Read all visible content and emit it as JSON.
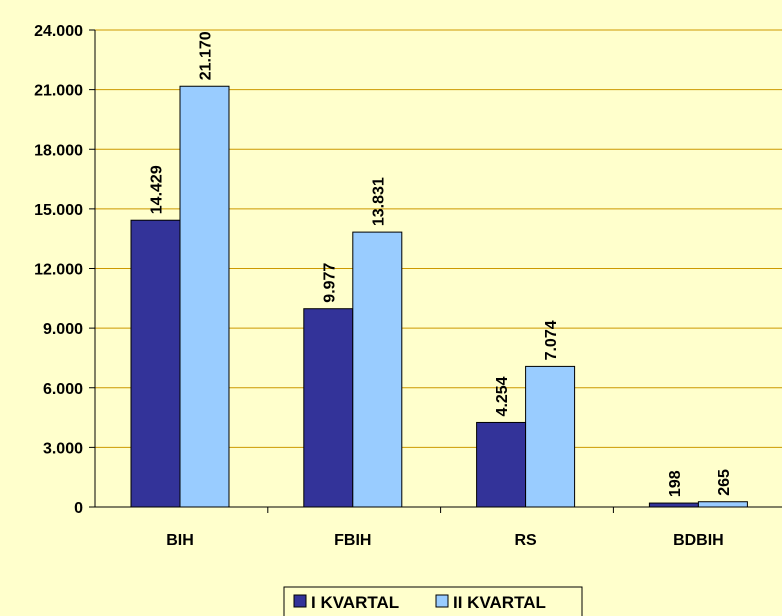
{
  "chart_data": {
    "type": "bar",
    "categories": [
      "BIH",
      "FBIH",
      "RS",
      "BDBIH"
    ],
    "series": [
      {
        "name": "I KVARTAL",
        "values": [
          14429,
          9977,
          4254,
          198
        ],
        "labels": [
          "14.429",
          "9.977",
          "4.254",
          "198"
        ],
        "color": "#333399"
      },
      {
        "name": "II KVARTAL",
        "values": [
          21170,
          13831,
          7074,
          265
        ],
        "labels": [
          "21.170",
          "13.831",
          "7.074",
          "265"
        ],
        "color": "#99CCFF"
      }
    ],
    "yticks": [
      0,
      3000,
      6000,
      9000,
      12000,
      15000,
      18000,
      21000,
      24000
    ],
    "ytick_labels": [
      "0",
      "3.000",
      "6.000",
      "9.000",
      "12.000",
      "15.000",
      "18.000",
      "21.000",
      "24.000"
    ],
    "ylim": [
      0,
      24000
    ],
    "grid": true,
    "legend_position": "bottom",
    "background": "#FFFFCC",
    "gridline_color": "#CC9900"
  }
}
